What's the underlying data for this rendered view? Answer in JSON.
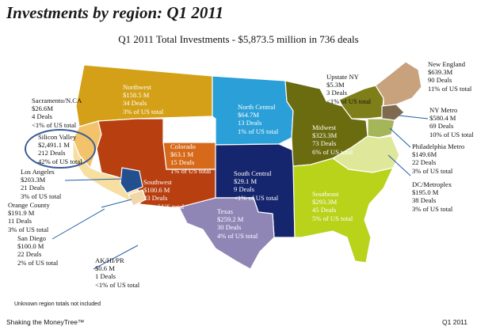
{
  "title": "Investments by region: Q1 2011",
  "subtitle": "Q1 2011 Total Investments - $5,873.5 million in 736 deals",
  "note": "Unknown region totals not included",
  "footer": "Shaking the MoneyTree™",
  "period": "Q1 2011",
  "colors": {
    "northwest": "#d4a017",
    "north_central": "#2a9fd8",
    "upstate_ny": "#7f7f1a",
    "new_england": "#c8a27c",
    "ny_metro": "#7f6a50",
    "sacramento": "#f2c36a",
    "silicon_valley": "#f6dfa0",
    "colorado": "#d66a1a",
    "southwest": "#b84010",
    "midwest": "#6b6b0f",
    "philadelphia": "#a5b55a",
    "dc_metroplex": "#dfe89a",
    "la": "#234f8f",
    "orange_county": "#f1d6a8",
    "south_central": "#16266e",
    "texas": "#8f86b6",
    "southeast": "#b8d31a",
    "highlight": "#3a5a9a"
  },
  "regions": [
    {
      "id": "northwest",
      "lines": [
        "Northwest",
        "$158.5 M",
        "34 Deals",
        "3% of US total"
      ]
    },
    {
      "id": "sacramento",
      "lines": [
        "Sacramento/N.CA",
        "$26.6M",
        "4 Deals",
        "<1% of US total"
      ]
    },
    {
      "id": "silicon_valley",
      "lines": [
        "Silicon Valley",
        "$2,491.1 M",
        "212 Deals",
        "42% of US total"
      ]
    },
    {
      "id": "north_central",
      "lines": [
        "North Central",
        "$64.7M",
        "13 Deals",
        "1% of US total"
      ]
    },
    {
      "id": "upstate_ny",
      "lines": [
        "Upstate NY",
        "$5.3M",
        "3 Deals",
        "<1% of US total"
      ]
    },
    {
      "id": "new_england",
      "lines": [
        "New England",
        "$639.3M",
        "90 Deals",
        "11% of US total"
      ]
    },
    {
      "id": "ny_metro",
      "lines": [
        "NY Metro",
        "$580.4 M",
        "69 Deals",
        "10% of US total"
      ]
    },
    {
      "id": "colorado",
      "lines": [
        "Colorado",
        "$63.1 M",
        "15 Deals",
        "1% of US total"
      ]
    },
    {
      "id": "midwest",
      "lines": [
        "Midwest",
        "$323.3M",
        "73 Deals",
        "6% of US total"
      ]
    },
    {
      "id": "philadelphia",
      "lines": [
        "Philadelphia Metro",
        "$149.6M",
        "22 Deals",
        "3% of US total"
      ]
    },
    {
      "id": "los_angeles",
      "lines": [
        "Los Angeles",
        "$203.3M",
        "21 Deals",
        "3% of US total"
      ]
    },
    {
      "id": "southwest",
      "lines": [
        "Southwest",
        "$100.6 M",
        "23 Deals",
        "2% of US total"
      ]
    },
    {
      "id": "south_central",
      "lines": [
        "South Central",
        "$29.1 M",
        "9 Deals",
        "<1% of US total"
      ]
    },
    {
      "id": "dc_metroplex",
      "lines": [
        "DC/Metroplex",
        "$195.0 M",
        "38 Deals",
        "3% of US total"
      ]
    },
    {
      "id": "orange_county",
      "lines": [
        "Orange County",
        "$191.9 M",
        "11 Deals",
        "3% of US total"
      ]
    },
    {
      "id": "texas",
      "lines": [
        "Texas",
        "$259.2 M",
        "30 Deals",
        "4% of US total"
      ]
    },
    {
      "id": "southeast",
      "lines": [
        "Southeast",
        "$293.3M",
        "45 Deals",
        "5% of US total"
      ]
    },
    {
      "id": "san_diego",
      "lines": [
        "San Diego",
        "$100.0 M",
        "22 Deals",
        "2% of US total"
      ]
    },
    {
      "id": "ak_hi_pr",
      "lines": [
        "AK/HI/PR",
        "$0.6 M",
        "1 Deals",
        "<1% of US total"
      ]
    }
  ]
}
